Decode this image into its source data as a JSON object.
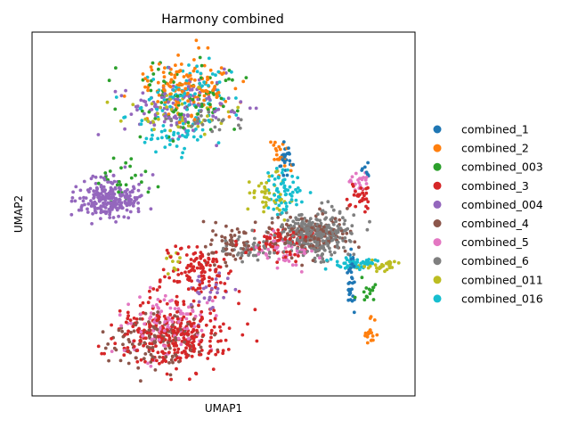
{
  "chart_data": {
    "type": "scatter",
    "title": "Harmony combined",
    "xlabel": "UMAP1",
    "ylabel": "UMAP2",
    "xlim": [
      0,
      100
    ],
    "ylim": [
      0,
      100
    ],
    "show_ticks": false,
    "grid": false,
    "legend_position": "right",
    "series": [
      {
        "name": "combined_1",
        "color": "#1f77b4",
        "points": 70,
        "clusters": [
          [
            66.5,
            65.8,
            1.2,
            4.5,
            26
          ],
          [
            84.0,
            32.0,
            0.8,
            8.0,
            36
          ],
          [
            88.0,
            62.5,
            1.0,
            2.0,
            8
          ]
        ]
      },
      {
        "name": "combined_2",
        "color": "#ff7f0e",
        "points": 170,
        "clusters": [
          [
            40.0,
            86.5,
            11.0,
            7.0,
            130
          ],
          [
            65.0,
            66.0,
            2.0,
            4.0,
            20
          ],
          [
            89.0,
            16.5,
            1.2,
            3.0,
            20
          ]
        ]
      },
      {
        "name": "combined_003",
        "color": "#2ca02c",
        "points": 120,
        "clusters": [
          [
            42.0,
            83.0,
            12.0,
            9.0,
            80
          ],
          [
            24.0,
            59.0,
            8.0,
            4.0,
            25
          ],
          [
            88.0,
            28.0,
            2.0,
            2.0,
            15
          ]
        ]
      },
      {
        "name": "combined_3",
        "color": "#d62728",
        "points": 520,
        "clusters": [
          [
            36.0,
            16.0,
            12.0,
            7.5,
            290
          ],
          [
            43.0,
            34.0,
            8.0,
            7.0,
            120
          ],
          [
            65.0,
            42.0,
            7.0,
            3.5,
            80
          ],
          [
            86.0,
            55.0,
            2.5,
            3.0,
            30
          ]
        ]
      },
      {
        "name": "combined_004",
        "color": "#9467bd",
        "points": 380,
        "clusters": [
          [
            20.0,
            54.5,
            7.5,
            4.5,
            230
          ],
          [
            38.0,
            80.0,
            12.0,
            7.0,
            120
          ],
          [
            46.0,
            28.0,
            5.0,
            5.0,
            30
          ]
        ]
      },
      {
        "name": "combined_4",
        "color": "#8c564b",
        "points": 330,
        "clusters": [
          [
            32.0,
            14.5,
            11.0,
            6.5,
            130
          ],
          [
            73.0,
            44.0,
            9.0,
            5.0,
            140
          ],
          [
            52.0,
            41.0,
            6.0,
            4.0,
            60
          ]
        ]
      },
      {
        "name": "combined_5",
        "color": "#e377c2",
        "points": 180,
        "clusters": [
          [
            35.0,
            20.0,
            11.0,
            8.0,
            110
          ],
          [
            66.0,
            40.0,
            7.0,
            4.0,
            50
          ],
          [
            86.0,
            59.0,
            3.0,
            2.5,
            20
          ]
        ]
      },
      {
        "name": "combined_6",
        "color": "#7f7f7f",
        "points": 380,
        "clusters": [
          [
            74.0,
            44.0,
            8.5,
            5.0,
            300
          ],
          [
            56.0,
            40.0,
            5.0,
            3.0,
            50
          ],
          [
            44.0,
            76.0,
            10.0,
            3.0,
            30
          ]
        ]
      },
      {
        "name": "combined_011",
        "color": "#bcbd22",
        "points": 120,
        "clusters": [
          [
            38.0,
            78.0,
            11.0,
            6.0,
            40
          ],
          [
            62.0,
            55.0,
            4.0,
            5.0,
            40
          ],
          [
            92.0,
            35.5,
            3.5,
            1.2,
            30
          ],
          [
            36.0,
            38.0,
            1.5,
            3.0,
            10
          ]
        ]
      },
      {
        "name": "combined_016",
        "color": "#17becf",
        "points": 240,
        "clusters": [
          [
            40.0,
            82.0,
            11.0,
            8.0,
            90
          ],
          [
            66.0,
            56.0,
            4.0,
            5.0,
            60
          ],
          [
            85.0,
            36.0,
            5.0,
            1.5,
            50
          ],
          [
            38.0,
            72.0,
            7.0,
            3.0,
            40
          ]
        ]
      }
    ]
  }
}
